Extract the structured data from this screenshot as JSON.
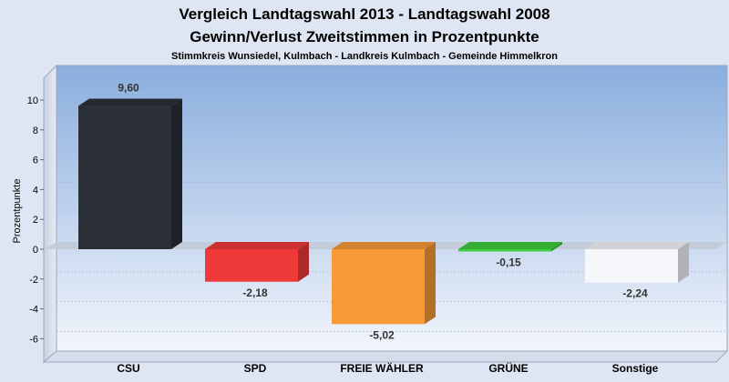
{
  "chart_data": {
    "type": "bar",
    "title": "Vergleich Landtagswahl 2013 - Landtagswahl 2008",
    "subtitle": "Gewinn/Verlust Zweitstimmen in Prozentpunkte",
    "subtitle2": "Stimmkreis Wunsiedel, Kulmbach - Landkreis Kulmbach - Gemeinde Himmelkron",
    "ylabel": "Prozentpunkte",
    "xlabel": "",
    "ylim": [
      -7,
      11
    ],
    "yticks": [
      10,
      8,
      6,
      4,
      2,
      0,
      -2,
      -4,
      -6
    ],
    "grid": true,
    "categories": [
      "CSU",
      "SPD",
      "FREIE WÄHLER",
      "GRÜNE",
      "Sonstige"
    ],
    "values": [
      9.6,
      -2.18,
      -5.02,
      -0.15,
      -2.24
    ],
    "value_labels": [
      "9,60",
      "-2,18",
      "-5,02",
      "-0,15",
      "-2,24"
    ],
    "colors": [
      "#2b2f38",
      "#f03a3a",
      "#f89a38",
      "#3ccc3c",
      "#f6f7fb"
    ]
  }
}
